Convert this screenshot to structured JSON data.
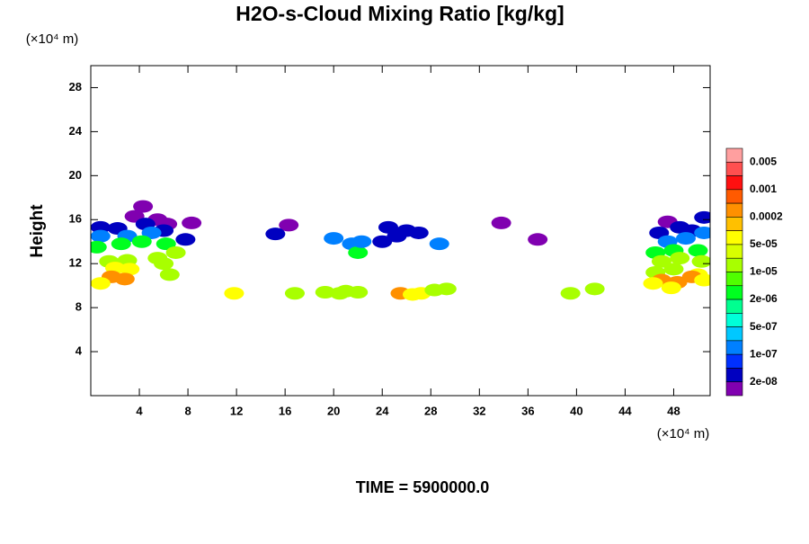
{
  "chart_data": {
    "type": "contour",
    "title": "H2O-s-Cloud Mixing Ratio [kg/kg]",
    "y_label": "Height",
    "x_unit": "(×10⁴ m)",
    "y_unit": "(×10⁴ m)",
    "footer": "TIME = 5900000.0",
    "xlim": [
      0,
      51
    ],
    "ylim": [
      0,
      30
    ],
    "xticks": [
      4,
      8,
      12,
      16,
      20,
      24,
      28,
      32,
      36,
      40,
      44,
      48
    ],
    "yticks": [
      4,
      8,
      12,
      16,
      20,
      24,
      28
    ],
    "colorbar": {
      "colors": [
        "#ff9f9f",
        "#ff5050",
        "#ff1010",
        "#ff5a00",
        "#ff9000",
        "#ffc000",
        "#ffff00",
        "#d8ff00",
        "#a8ff00",
        "#50ff00",
        "#00ff20",
        "#00ff90",
        "#00ffd8",
        "#00c8ff",
        "#0080ff",
        "#0030ff",
        "#0000c0",
        "#8000b0"
      ],
      "ticks": [
        0.005,
        0.001,
        0.0002,
        {
          "value": 5e-05,
          "label": "5e-05"
        },
        {
          "value": 1e-05,
          "label": "1e-05"
        },
        {
          "value": 2e-06,
          "label": "2e-06"
        },
        {
          "value": 5e-07,
          "label": "5e-07"
        },
        {
          "value": 1e-07,
          "label": "1e-07"
        },
        {
          "value": 2e-08,
          "label": "2e-08"
        }
      ]
    },
    "x": [
      4.3,
      3.6,
      5.5,
      6.3,
      0.8,
      8.3,
      2.2,
      4.5,
      6,
      0.8,
      3,
      5,
      7.8,
      0.5,
      2.5,
      4.2,
      6.2,
      7,
      1.5,
      3,
      5.5,
      2,
      3.2,
      6,
      1.7,
      2.8,
      0.8,
      6.5,
      16.3,
      15.2,
      20,
      21.5,
      22,
      22.3,
      24.5,
      26,
      25.2,
      27,
      28.7,
      33.8,
      36.8,
      24,
      11.8,
      16.8,
      19.3,
      20.5,
      21,
      22,
      25.5,
      26.5,
      27.2,
      28.3,
      29.3,
      39.5,
      41.5,
      47.5,
      48.5,
      50.5,
      46.8,
      49.5,
      47.5,
      49,
      50.5,
      46.5,
      48,
      50,
      47,
      48.5,
      50.3,
      46.5,
      48,
      50,
      47,
      48.3,
      49.5,
      50.5,
      47.8,
      46.3
    ],
    "y": [
      17.2,
      16.3,
      16,
      15.6,
      15.3,
      15.7,
      15.2,
      15.6,
      15,
      14.5,
      14.5,
      14.8,
      14.2,
      13.5,
      13.8,
      14,
      13.8,
      13,
      12.2,
      12.3,
      12.5,
      11.6,
      11.5,
      12,
      10.8,
      10.6,
      10.2,
      11,
      15.5,
      14.7,
      14.3,
      13.8,
      13,
      14,
      15.3,
      15,
      14.5,
      14.8,
      13.8,
      15.7,
      14.2,
      14,
      9.3,
      9.3,
      9.4,
      9.3,
      9.5,
      9.4,
      9.3,
      9.2,
      9.3,
      9.6,
      9.7,
      9.3,
      9.7,
      15.8,
      15.3,
      16.2,
      14.8,
      15,
      14,
      14.3,
      14.8,
      13,
      13.2,
      13.2,
      12.2,
      12.5,
      12.2,
      11.2,
      11.5,
      11,
      10.5,
      10.3,
      10.8,
      10.5,
      9.8,
      10.2
    ],
    "values": [
      1e-08,
      1e-08,
      1e-08,
      1e-08,
      5e-08,
      1e-08,
      5e-08,
      5e-08,
      5e-08,
      3e-07,
      3e-07,
      3e-07,
      5e-08,
      3e-06,
      3e-06,
      3e-06,
      3e-06,
      1e-05,
      3e-05,
      3e-05,
      1e-05,
      0.0001,
      5e-05,
      3e-05,
      0.0003,
      0.0003,
      0.0001,
      3e-05,
      1e-08,
      5e-08,
      1e-07,
      3e-07,
      3e-06,
      3e-07,
      5e-08,
      5e-08,
      5e-08,
      5e-08,
      3e-07,
      1e-08,
      1e-08,
      5e-08,
      0.0001,
      3e-05,
      3e-05,
      3e-05,
      3e-05,
      3e-05,
      0.0003,
      0.0001,
      0.0001,
      3e-05,
      3e-05,
      3e-05,
      3e-05,
      1e-08,
      5e-08,
      5e-08,
      5e-08,
      5e-08,
      3e-07,
      3e-07,
      3e-07,
      3e-06,
      3e-06,
      3e-06,
      1e-05,
      3e-05,
      1e-05,
      3e-05,
      3e-05,
      5e-05,
      0.0005,
      0.0003,
      0.0003,
      0.0001,
      0.0001,
      0.0001
    ]
  }
}
